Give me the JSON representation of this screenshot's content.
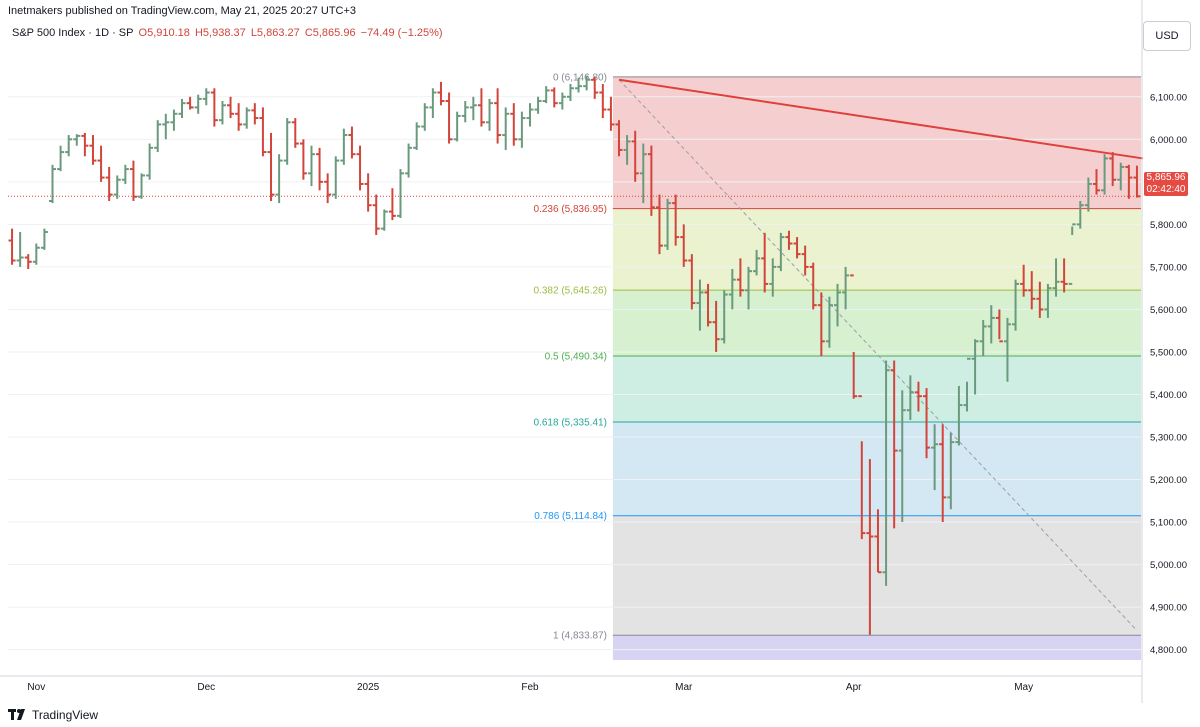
{
  "header": {
    "publisher": "Inetmakers published on TradingView.com, May 21, 2025 20:27 UTC+3",
    "symbol": "S&P 500 Index · 1D · SP",
    "open": "O5,910.18",
    "high": "H5,938.37",
    "low": "L5,863.27",
    "close": "C5,865.96",
    "change": "−74.49 (−1.25%)",
    "currency": "USD"
  },
  "last_price": {
    "value": "5,865.96",
    "countdown": "02:42:40"
  },
  "footer": {
    "brand": "TradingView"
  },
  "colors": {
    "up": "#6a9a7e",
    "down": "#d1453b",
    "trendline": "#e0403a"
  },
  "chart_data": {
    "type": "ohlc",
    "title": "S&P 500 Index · 1D · SP",
    "y_ticks": [
      "6,100.00",
      "6,000.00",
      "5,900.00",
      "5,800.00",
      "5,700.00",
      "5,600.00",
      "5,500.00",
      "5,400.00",
      "5,300.00",
      "5,200.00",
      "5,100.00",
      "5,000.00",
      "4,900.00",
      "4,800.00"
    ],
    "y_tick_values": [
      6100,
      6000,
      5900,
      5800,
      5700,
      5600,
      5500,
      5400,
      5300,
      5200,
      5100,
      5000,
      4900,
      4800
    ],
    "ylim": [
      4738,
      6210
    ],
    "x_labels": [
      {
        "label": "Nov",
        "index": 3
      },
      {
        "label": "Dec",
        "index": 24
      },
      {
        "label": "2025",
        "index": 44
      },
      {
        "label": "Feb",
        "index": 64
      },
      {
        "label": "Mar",
        "index": 83
      },
      {
        "label": "Apr",
        "index": 104
      },
      {
        "label": "May",
        "index": 125
      }
    ],
    "bar_count_span": 140,
    "fib_levels": [
      {
        "ratio": 0,
        "label": "0 (6,146.80)",
        "price": 6146.8,
        "color": "#868993"
      },
      {
        "ratio": 0.236,
        "label": "0.236 (5,836.95)",
        "price": 5836.95,
        "color": "#d1453b"
      },
      {
        "ratio": 0.382,
        "label": "0.382 (5,645.26)",
        "price": 5645.26,
        "color": "#9bbd3d"
      },
      {
        "ratio": 0.5,
        "label": "0.5 (5,490.34)",
        "price": 5490.34,
        "color": "#4caf50"
      },
      {
        "ratio": 0.618,
        "label": "0.618 (5,335.41)",
        "price": 5335.41,
        "color": "#26a69a"
      },
      {
        "ratio": 0.786,
        "label": "0.786 (5,114.84)",
        "price": 5114.84,
        "color": "#2196f3"
      },
      {
        "ratio": 1,
        "label": "1 (4,833.87)",
        "price": 4833.87,
        "color": "#868993"
      }
    ],
    "fib_zone_fills": [
      "#f5cfcf",
      "#eaf2d0",
      "#d7f0d0",
      "#cfeee3",
      "#d3e8f2",
      "#e3e3e3",
      "#d6d3f3"
    ],
    "fib_start_index": 74,
    "trendline": {
      "from": {
        "index": 75,
        "price": 6140
      },
      "to": {
        "index": 139,
        "price": 5955
      }
    },
    "dashed_line": {
      "from": {
        "index": 75,
        "price": 6140
      },
      "to": {
        "index": 139,
        "price": 4845
      }
    },
    "last_close_dotted_y": 5865.96,
    "bars": [
      [
        5762,
        5790,
        5705,
        5715
      ],
      [
        5715,
        5782,
        5700,
        5722
      ],
      [
        5722,
        5730,
        5695,
        5712
      ],
      [
        5712,
        5755,
        5705,
        5745
      ],
      [
        5745,
        5790,
        5740,
        5782
      ],
      [
        5855,
        5940,
        5850,
        5930
      ],
      [
        5930,
        5985,
        5925,
        5970
      ],
      [
        5970,
        6010,
        5960,
        6000
      ],
      [
        6000,
        6012,
        5985,
        6008
      ],
      [
        6008,
        6015,
        5960,
        5985
      ],
      [
        5985,
        6010,
        5940,
        5950
      ],
      [
        5950,
        5985,
        5900,
        5910
      ],
      [
        5910,
        5935,
        5855,
        5870
      ],
      [
        5870,
        5915,
        5860,
        5905
      ],
      [
        5905,
        5940,
        5895,
        5930
      ],
      [
        5930,
        5950,
        5855,
        5865
      ],
      [
        5865,
        5920,
        5860,
        5915
      ],
      [
        5915,
        5990,
        5905,
        5980
      ],
      [
        5980,
        6045,
        5970,
        6035
      ],
      [
        6035,
        6060,
        6000,
        6040
      ],
      [
        6040,
        6070,
        6020,
        6060
      ],
      [
        6060,
        6095,
        6050,
        6085
      ],
      [
        6085,
        6100,
        6070,
        6075
      ],
      [
        6075,
        6105,
        6060,
        6095
      ],
      [
        6095,
        6120,
        6080,
        6110
      ],
      [
        6110,
        6120,
        6030,
        6045
      ],
      [
        6045,
        6090,
        6035,
        6080
      ],
      [
        6080,
        6100,
        6050,
        6060
      ],
      [
        6060,
        6085,
        6020,
        6035
      ],
      [
        6035,
        6075,
        6025,
        6068
      ],
      [
        6068,
        6085,
        6035,
        6050
      ],
      [
        6050,
        6075,
        5960,
        5970
      ],
      [
        5970,
        6015,
        5855,
        5870
      ],
      [
        5870,
        5965,
        5850,
        5950
      ],
      [
        5950,
        6050,
        5940,
        6040
      ],
      [
        6040,
        6050,
        5980,
        5990
      ],
      [
        5990,
        6000,
        5905,
        5920
      ],
      [
        5920,
        5985,
        5890,
        5965
      ],
      [
        5965,
        5980,
        5880,
        5900
      ],
      [
        5900,
        5920,
        5850,
        5870
      ],
      [
        5870,
        5960,
        5860,
        5950
      ],
      [
        5950,
        6025,
        5940,
        6010
      ],
      [
        6010,
        6030,
        5955,
        5965
      ],
      [
        5965,
        5985,
        5880,
        5895
      ],
      [
        5895,
        5920,
        5830,
        5845
      ],
      [
        5845,
        5870,
        5775,
        5790
      ],
      [
        5790,
        5835,
        5785,
        5830
      ],
      [
        5830,
        5885,
        5810,
        5820
      ],
      [
        5820,
        5930,
        5815,
        5920
      ],
      [
        5920,
        5990,
        5910,
        5980
      ],
      [
        5980,
        6040,
        5975,
        6030
      ],
      [
        6030,
        6085,
        6020,
        6075
      ],
      [
        6075,
        6120,
        6050,
        6110
      ],
      [
        6110,
        6135,
        6080,
        6090
      ],
      [
        6090,
        6110,
        5990,
        6000
      ],
      [
        6000,
        6065,
        5995,
        6055
      ],
      [
        6055,
        6090,
        6040,
        6075
      ],
      [
        6075,
        6100,
        6045,
        6080
      ],
      [
        6080,
        6120,
        6030,
        6040
      ],
      [
        6040,
        6095,
        6020,
        6085
      ],
      [
        6085,
        6120,
        5990,
        6010
      ],
      [
        6010,
        6075,
        5975,
        6060
      ],
      [
        6060,
        6085,
        5985,
        6000
      ],
      [
        6000,
        6065,
        5980,
        6050
      ],
      [
        6050,
        6085,
        6030,
        6070
      ],
      [
        6070,
        6100,
        6060,
        6090
      ],
      [
        6090,
        6125,
        6085,
        6115
      ],
      [
        6115,
        6122,
        6075,
        6085
      ],
      [
        6085,
        6110,
        6070,
        6100
      ],
      [
        6100,
        6130,
        6090,
        6120
      ],
      [
        6120,
        6145,
        6110,
        6125
      ],
      [
        6125,
        6150,
        6115,
        6140
      ],
      [
        6140,
        6147,
        6095,
        6110
      ],
      [
        6110,
        6130,
        6050,
        6070
      ],
      [
        6070,
        6100,
        6020,
        6035
      ],
      [
        6035,
        6045,
        5960,
        5975
      ],
      [
        5975,
        6010,
        5940,
        5995
      ],
      [
        5995,
        6020,
        5900,
        5920
      ],
      [
        5920,
        5990,
        5850,
        5965
      ],
      [
        5965,
        5985,
        5820,
        5840
      ],
      [
        5840,
        5870,
        5730,
        5750
      ],
      [
        5750,
        5860,
        5740,
        5850
      ],
      [
        5850,
        5870,
        5750,
        5770
      ],
      [
        5770,
        5800,
        5700,
        5715
      ],
      [
        5715,
        5730,
        5600,
        5615
      ],
      [
        5615,
        5670,
        5550,
        5640
      ],
      [
        5640,
        5660,
        5560,
        5570
      ],
      [
        5570,
        5620,
        5500,
        5530
      ],
      [
        5530,
        5645,
        5520,
        5635
      ],
      [
        5635,
        5695,
        5600,
        5670
      ],
      [
        5670,
        5720,
        5630,
        5645
      ],
      [
        5645,
        5700,
        5600,
        5690
      ],
      [
        5690,
        5740,
        5680,
        5720
      ],
      [
        5720,
        5780,
        5640,
        5660
      ],
      [
        5660,
        5720,
        5630,
        5700
      ],
      [
        5700,
        5780,
        5690,
        5770
      ],
      [
        5770,
        5785,
        5740,
        5755
      ],
      [
        5755,
        5770,
        5720,
        5730
      ],
      [
        5730,
        5750,
        5680,
        5700
      ],
      [
        5700,
        5710,
        5600,
        5610
      ],
      [
        5610,
        5640,
        5490,
        5525
      ],
      [
        5525,
        5630,
        5510,
        5610
      ],
      [
        5610,
        5660,
        5560,
        5640
      ],
      [
        5640,
        5700,
        5600,
        5680
      ],
      [
        5680,
        5500,
        5390,
        5396
      ],
      [
        5396,
        5290,
        5060,
        5074
      ],
      [
        5074,
        5248,
        4835,
        5066
      ],
      [
        5066,
        5130,
        4982,
        4982
      ],
      [
        4982,
        5480,
        4950,
        5457
      ],
      [
        5457,
        5480,
        5085,
        5268
      ],
      [
        5268,
        5410,
        5100,
        5363
      ],
      [
        5363,
        5445,
        5340,
        5405
      ],
      [
        5405,
        5430,
        5360,
        5396
      ],
      [
        5396,
        5415,
        5250,
        5275
      ],
      [
        5275,
        5330,
        5175,
        5283
      ],
      [
        5283,
        5330,
        5100,
        5158
      ],
      [
        5158,
        5310,
        5130,
        5288
      ],
      [
        5288,
        5420,
        5280,
        5375
      ],
      [
        5375,
        5430,
        5360,
        5484
      ],
      [
        5484,
        5530,
        5400,
        5525
      ],
      [
        5525,
        5575,
        5490,
        5560
      ],
      [
        5560,
        5610,
        5520,
        5580
      ],
      [
        5580,
        5600,
        5530,
        5525
      ],
      [
        5525,
        5580,
        5430,
        5565
      ],
      [
        5565,
        5670,
        5550,
        5660
      ],
      [
        5660,
        5705,
        5630,
        5645
      ],
      [
        5645,
        5690,
        5600,
        5625
      ],
      [
        5625,
        5665,
        5580,
        5600
      ],
      [
        5600,
        5660,
        5580,
        5650
      ],
      [
        5650,
        5720,
        5630,
        5665
      ],
      [
        5665,
        5720,
        5640,
        5660
      ],
      [
        5660,
        5795,
        5775,
        5800
      ],
      [
        5800,
        5855,
        5790,
        5845
      ],
      [
        5845,
        5910,
        5830,
        5895
      ],
      [
        5895,
        5930,
        5870,
        5880
      ],
      [
        5880,
        5965,
        5870,
        5955
      ],
      [
        5955,
        5970,
        5890,
        5905
      ],
      [
        5905,
        5945,
        5880,
        5935
      ],
      [
        5935,
        5940,
        5860,
        5910
      ],
      [
        5910,
        5938,
        5863,
        5866
      ]
    ]
  }
}
